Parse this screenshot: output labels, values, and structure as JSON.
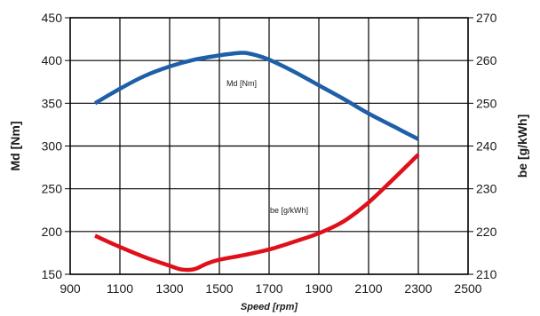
{
  "chart_data": {
    "type": "line",
    "title": "",
    "xlabel": "Speed [rpm]",
    "ylabel_left": "Md [Nm]",
    "ylabel_right": "be [g/kWh]",
    "xlim": [
      900,
      2500
    ],
    "x_ticks": [
      900,
      1100,
      1300,
      1500,
      1700,
      1900,
      2100,
      2300,
      2500
    ],
    "ylim_left": [
      150,
      450
    ],
    "y_ticks_left": [
      150,
      200,
      250,
      300,
      350,
      400,
      450
    ],
    "ylim_right": [
      210,
      270
    ],
    "y_ticks_right": [
      210,
      220,
      230,
      240,
      250,
      260,
      270
    ],
    "grid": true,
    "series": [
      {
        "name": "Md [Nm]",
        "axis": "left",
        "color": "#1f5fa8",
        "x": [
          1000,
          1100,
          1200,
          1300,
          1400,
          1500,
          1550,
          1600,
          1650,
          1700,
          1800,
          1900,
          2000,
          2100,
          2200,
          2300
        ],
        "y": [
          350,
          367,
          382,
          393,
          401,
          406,
          408,
          409,
          406,
          401,
          387,
          371,
          355,
          338,
          323,
          308
        ]
      },
      {
        "name": "be [g/kWh]",
        "axis": "right",
        "color": "#e0101a",
        "x": [
          1000,
          1100,
          1200,
          1300,
          1350,
          1400,
          1450,
          1500,
          1600,
          1700,
          1800,
          1900,
          2000,
          2100,
          2200,
          2300
        ],
        "y": [
          219,
          216.4,
          214,
          212,
          211.1,
          211.2,
          212.5,
          213.4,
          214.5,
          215.8,
          217.6,
          219.6,
          222.4,
          226.8,
          232.3,
          238
        ]
      }
    ]
  }
}
